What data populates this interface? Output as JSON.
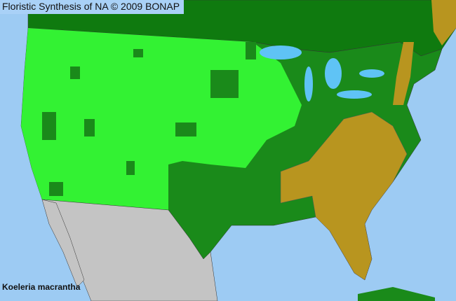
{
  "header": {
    "title": "Floristic Synthesis of NA © 2009 BONAP"
  },
  "species": {
    "name": "Koeleria macrantha"
  },
  "colors": {
    "ocean": "#9dcbf3",
    "lakes": "#5fc3f5",
    "present_native": "#33f233",
    "county_present": "#1a8a1a",
    "canada": "#0f7a0f",
    "absent_tan": "#b8951f",
    "mexico": "#c4c4c4"
  }
}
